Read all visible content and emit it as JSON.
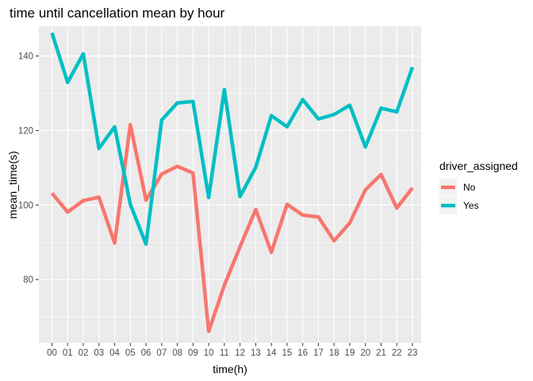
{
  "chart_data": {
    "type": "line",
    "title": "time until cancellation mean by hour",
    "xlabel": "time(h)",
    "ylabel": "mean_time(s)",
    "categories": [
      "00",
      "01",
      "02",
      "03",
      "04",
      "05",
      "06",
      "07",
      "08",
      "09",
      "10",
      "11",
      "12",
      "13",
      "14",
      "15",
      "16",
      "17",
      "18",
      "19",
      "20",
      "21",
      "22",
      "23"
    ],
    "ylim": [
      63,
      148
    ],
    "yticks": [
      80,
      100,
      120,
      140
    ],
    "grid": true,
    "legend": {
      "title": "driver_assigned",
      "position": "right"
    },
    "series": [
      {
        "name": "No",
        "color": "#F8766D",
        "values": [
          103.2,
          98.1,
          101.2,
          102.1,
          89.8,
          121.6,
          101.3,
          108.3,
          110.4,
          108.6,
          66.1,
          78.5,
          88.8,
          98.8,
          87.3,
          100.2,
          97.3,
          96.8,
          90.4,
          95.2,
          104.1,
          108.2,
          99.2,
          104.6
        ]
      },
      {
        "name": "Yes",
        "color": "#00BFC4",
        "values": [
          146.2,
          132.9,
          140.6,
          115.2,
          121.0,
          100.2,
          89.5,
          122.8,
          127.4,
          127.8,
          102.0,
          131.0,
          102.3,
          110.1,
          124.0,
          121.0,
          128.3,
          123.1,
          124.3,
          126.8,
          115.6,
          126.0,
          125.0,
          137.0
        ]
      }
    ]
  }
}
